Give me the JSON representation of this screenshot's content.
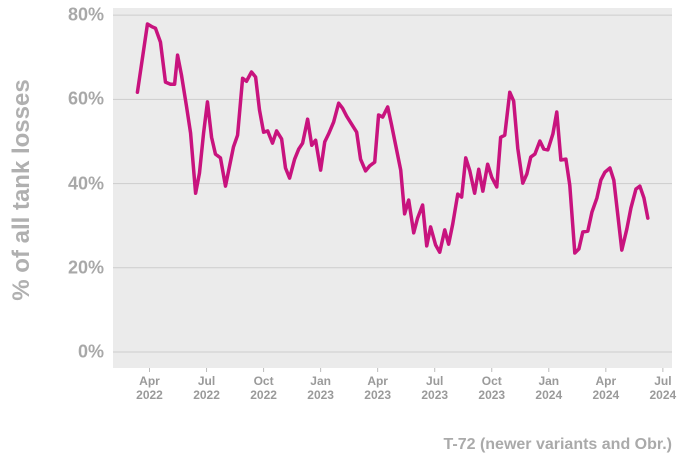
{
  "chart_data": {
    "type": "line",
    "y_label": "% of all tank losses",
    "caption": "T-72 (newer variants and Obr.)",
    "x": [
      2022.197,
      2022.241,
      2022.263,
      2022.276,
      2022.298,
      2022.32,
      2022.342,
      2022.36,
      2022.373,
      2022.39,
      2022.412,
      2022.43,
      2022.452,
      2022.469,
      2022.487,
      2022.504,
      2022.522,
      2022.539,
      2022.561,
      2022.583,
      2022.601,
      2022.618,
      2022.636,
      2022.658,
      2022.675,
      2022.697,
      2022.715,
      2022.732,
      2022.75,
      2022.768,
      2022.789,
      2022.807,
      2022.829,
      2022.846,
      2022.864,
      2022.886,
      2022.904,
      2022.921,
      2022.943,
      2022.961,
      2022.978,
      2023.0,
      2023.018,
      2023.035,
      2023.057,
      2023.079,
      2023.096,
      2023.114,
      2023.136,
      2023.158,
      2023.175,
      2023.197,
      2023.215,
      2023.237,
      2023.254,
      2023.272,
      2023.294,
      2023.311,
      2023.333,
      2023.351,
      2023.368,
      2023.386,
      2023.408,
      2023.425,
      2023.447,
      2023.465,
      2023.482,
      2023.504,
      2023.522,
      2023.544,
      2023.561,
      2023.579,
      2023.601,
      2023.618,
      2023.636,
      2023.654,
      2023.675,
      2023.693,
      2023.711,
      2023.732,
      2023.75,
      2023.772,
      2023.789,
      2023.807,
      2023.829,
      2023.846,
      2023.864,
      2023.886,
      2023.904,
      2023.921,
      2023.939,
      2023.961,
      2023.978,
      2023.996,
      2024.018,
      2024.035,
      2024.053,
      2024.075,
      2024.092,
      2024.114,
      2024.132,
      2024.149,
      2024.171,
      2024.189,
      2024.211,
      2024.228,
      2024.246,
      2024.268,
      2024.285,
      2024.303,
      2024.32,
      2024.342,
      2024.36,
      2024.382,
      2024.399,
      2024.417,
      2024.434
    ],
    "series": [
      {
        "color": "#c8137e",
        "values": [
          61.7,
          77.9,
          77.2,
          76.9,
          73.6,
          64.1,
          63.6,
          63.6,
          70.5,
          65.8,
          58.4,
          52.0,
          37.7,
          42.5,
          52.0,
          59.4,
          51.0,
          47.0,
          46.1,
          39.4,
          44.2,
          48.7,
          51.5,
          65.0,
          64.3,
          66.5,
          65.3,
          57.5,
          52.2,
          52.5,
          49.6,
          52.5,
          50.6,
          43.7,
          41.3,
          45.8,
          48.2,
          49.6,
          55.3,
          49.1,
          50.3,
          43.2,
          49.9,
          51.8,
          54.6,
          59.1,
          57.9,
          56.0,
          54.1,
          52.2,
          45.8,
          43.0,
          44.2,
          45.1,
          56.3,
          55.8,
          58.2,
          53.9,
          48.0,
          43.2,
          32.8,
          36.1,
          28.3,
          31.8,
          34.9,
          25.2,
          29.7,
          25.4,
          23.7,
          29.0,
          25.6,
          30.4,
          37.5,
          36.8,
          46.1,
          43.0,
          37.7,
          43.4,
          38.2,
          44.6,
          41.5,
          39.2,
          51.0,
          51.5,
          61.7,
          59.6,
          48.4,
          40.1,
          42.3,
          46.3,
          47.0,
          50.1,
          48.2,
          48.0,
          51.8,
          57.0,
          45.6,
          45.8,
          39.6,
          23.5,
          24.5,
          28.5,
          28.7,
          33.2,
          36.6,
          40.8,
          42.7,
          43.7,
          40.8,
          32.3,
          24.2,
          29.2,
          34.2,
          38.7,
          39.4,
          36.6,
          31.8
        ]
      }
    ],
    "xlim": [
      2022.09,
      2024.54
    ],
    "xticks": [
      {
        "value": 2022.25,
        "label": "Apr\n2022"
      },
      {
        "value": 2022.5,
        "label": "Jul\n2022"
      },
      {
        "value": 2022.75,
        "label": "Oct\n2022"
      },
      {
        "value": 2023.0,
        "label": "Jan\n2023"
      },
      {
        "value": 2023.25,
        "label": "Apr\n2023"
      },
      {
        "value": 2023.5,
        "label": "Jul\n2023"
      },
      {
        "value": 2023.75,
        "label": "Oct\n2023"
      },
      {
        "value": 2024.0,
        "label": "Jan\n2024"
      },
      {
        "value": 2024.25,
        "label": "Apr\n2024"
      },
      {
        "value": 2024.5,
        "label": "Jul\n2024"
      }
    ],
    "ylim": [
      -3.8,
      81.7
    ],
    "yticks": [
      {
        "value": 0,
        "label": "0%"
      },
      {
        "value": 20,
        "label": "20%"
      },
      {
        "value": 40,
        "label": "40%"
      },
      {
        "value": 60,
        "label": "60%"
      },
      {
        "value": 80,
        "label": "80%"
      }
    ],
    "grid": true
  }
}
